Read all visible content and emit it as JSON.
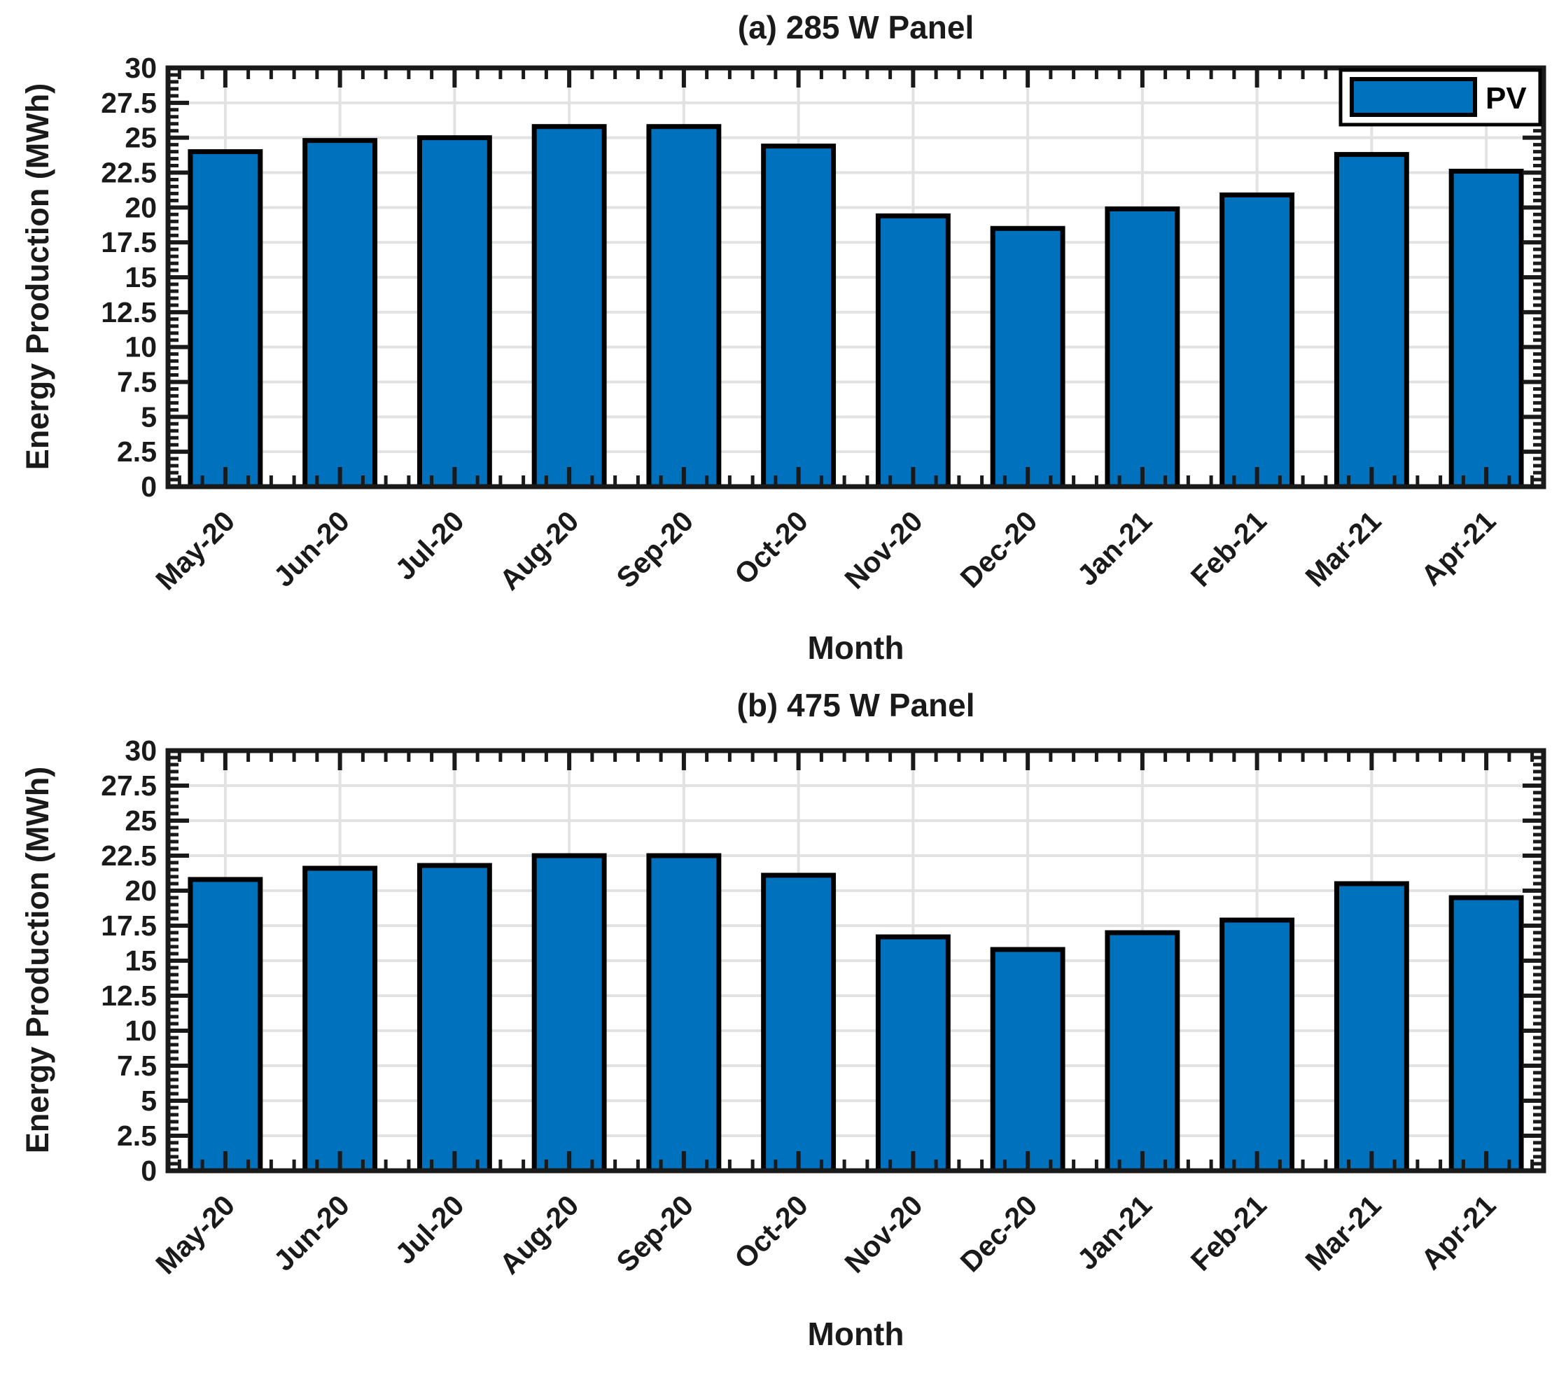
{
  "figure": {
    "background": "#ffffff",
    "bar_color": "#0072BD",
    "bar_edge_color": "#000000",
    "axis_color": "#1a1a1a",
    "tick_label_color": "#1a1a1a",
    "grid_color": "#e2e2e2",
    "legend": {
      "label": "PV",
      "position": "top-right"
    }
  },
  "chart_data": [
    {
      "type": "bar",
      "title": "(a) 285 W Panel",
      "xlabel": "Month",
      "ylabel": "Energy Production (MWh)",
      "categories": [
        "May-20",
        "Jun-20",
        "Jul-20",
        "Aug-20",
        "Sep-20",
        "Oct-20",
        "Nov-20",
        "Dec-20",
        "Jan-21",
        "Feb-21",
        "Mar-21",
        "Apr-21"
      ],
      "values": [
        24.0,
        24.8,
        25.0,
        25.8,
        25.8,
        24.4,
        19.4,
        18.5,
        19.9,
        20.9,
        23.8,
        22.6
      ],
      "series_name": "PV",
      "ylim": [
        0,
        30
      ],
      "yticks": [
        0,
        2.5,
        5,
        7.5,
        10,
        12.5,
        15,
        17.5,
        20,
        22.5,
        25,
        27.5,
        30
      ],
      "grid": "major-x-and-y",
      "legend_visible": true,
      "xtick_angle": 45
    },
    {
      "type": "bar",
      "title": "(b) 475 W Panel",
      "xlabel": "Month",
      "ylabel": "Energy Production (MWh)",
      "categories": [
        "May-20",
        "Jun-20",
        "Jul-20",
        "Aug-20",
        "Sep-20",
        "Oct-20",
        "Nov-20",
        "Dec-20",
        "Jan-21",
        "Feb-21",
        "Mar-21",
        "Apr-21"
      ],
      "values": [
        20.8,
        21.6,
        21.8,
        22.5,
        22.5,
        21.1,
        16.7,
        15.8,
        17.0,
        17.9,
        20.5,
        19.5
      ],
      "series_name": "PV",
      "ylim": [
        0,
        30
      ],
      "yticks": [
        0,
        2.5,
        5,
        7.5,
        10,
        12.5,
        15,
        17.5,
        20,
        22.5,
        25,
        27.5,
        30
      ],
      "grid": "major-x-and-y",
      "legend_visible": false,
      "xtick_angle": 45
    }
  ]
}
